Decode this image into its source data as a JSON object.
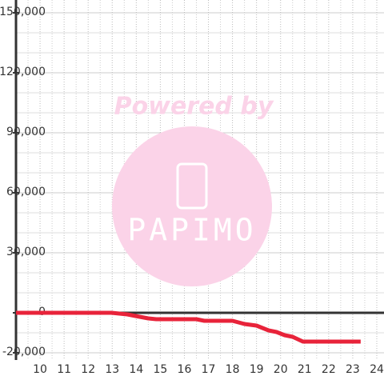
{
  "chart_data": {
    "type": "line",
    "watermark": {
      "line1": "Powered by",
      "line2": "PAPIMO"
    },
    "x": [
      9,
      12.97,
      13.63,
      13.97,
      14.5,
      14.83,
      16.5,
      16.83,
      18,
      18.5,
      19,
      19.5,
      19.83,
      20.17,
      20.5,
      20.93,
      23.33
    ],
    "series": [
      {
        "color": "#e8233a",
        "values": [
          0,
          0,
          -800,
          -1600,
          -2800,
          -3200,
          -3200,
          -4000,
          -4000,
          -5600,
          -6400,
          -8800,
          -9600,
          -11200,
          -12000,
          -14400,
          -14400
        ]
      }
    ],
    "xlim": [
      9,
      24.3
    ],
    "xticks": [
      10,
      11,
      12,
      13,
      14,
      15,
      16,
      17,
      18,
      19,
      20,
      21,
      22,
      23,
      24
    ],
    "x_minor_ticks": [
      9.5,
      10.5,
      11.5,
      12.5,
      13.5,
      14.5,
      15.5,
      16.5,
      17.5,
      18.5,
      19.5,
      20.5,
      21.5,
      22.5,
      23.5
    ],
    "ylim": [
      -20000,
      150000
    ],
    "yticks": [
      {
        "value": -20000,
        "label": "-20,000"
      },
      0,
      {
        "value": 30000,
        "label": "30,000"
      },
      {
        "value": 60000,
        "label": "60,000"
      },
      {
        "value": 90000,
        "label": "90,000"
      },
      {
        "value": 120000,
        "label": "120,000"
      },
      {
        "value": 150000,
        "label": "150,000"
      }
    ],
    "y_minor_ticks": [
      -10000,
      10000,
      20000,
      40000,
      50000,
      70000,
      80000,
      100000,
      110000,
      130000,
      140000
    ],
    "grid": true
  }
}
